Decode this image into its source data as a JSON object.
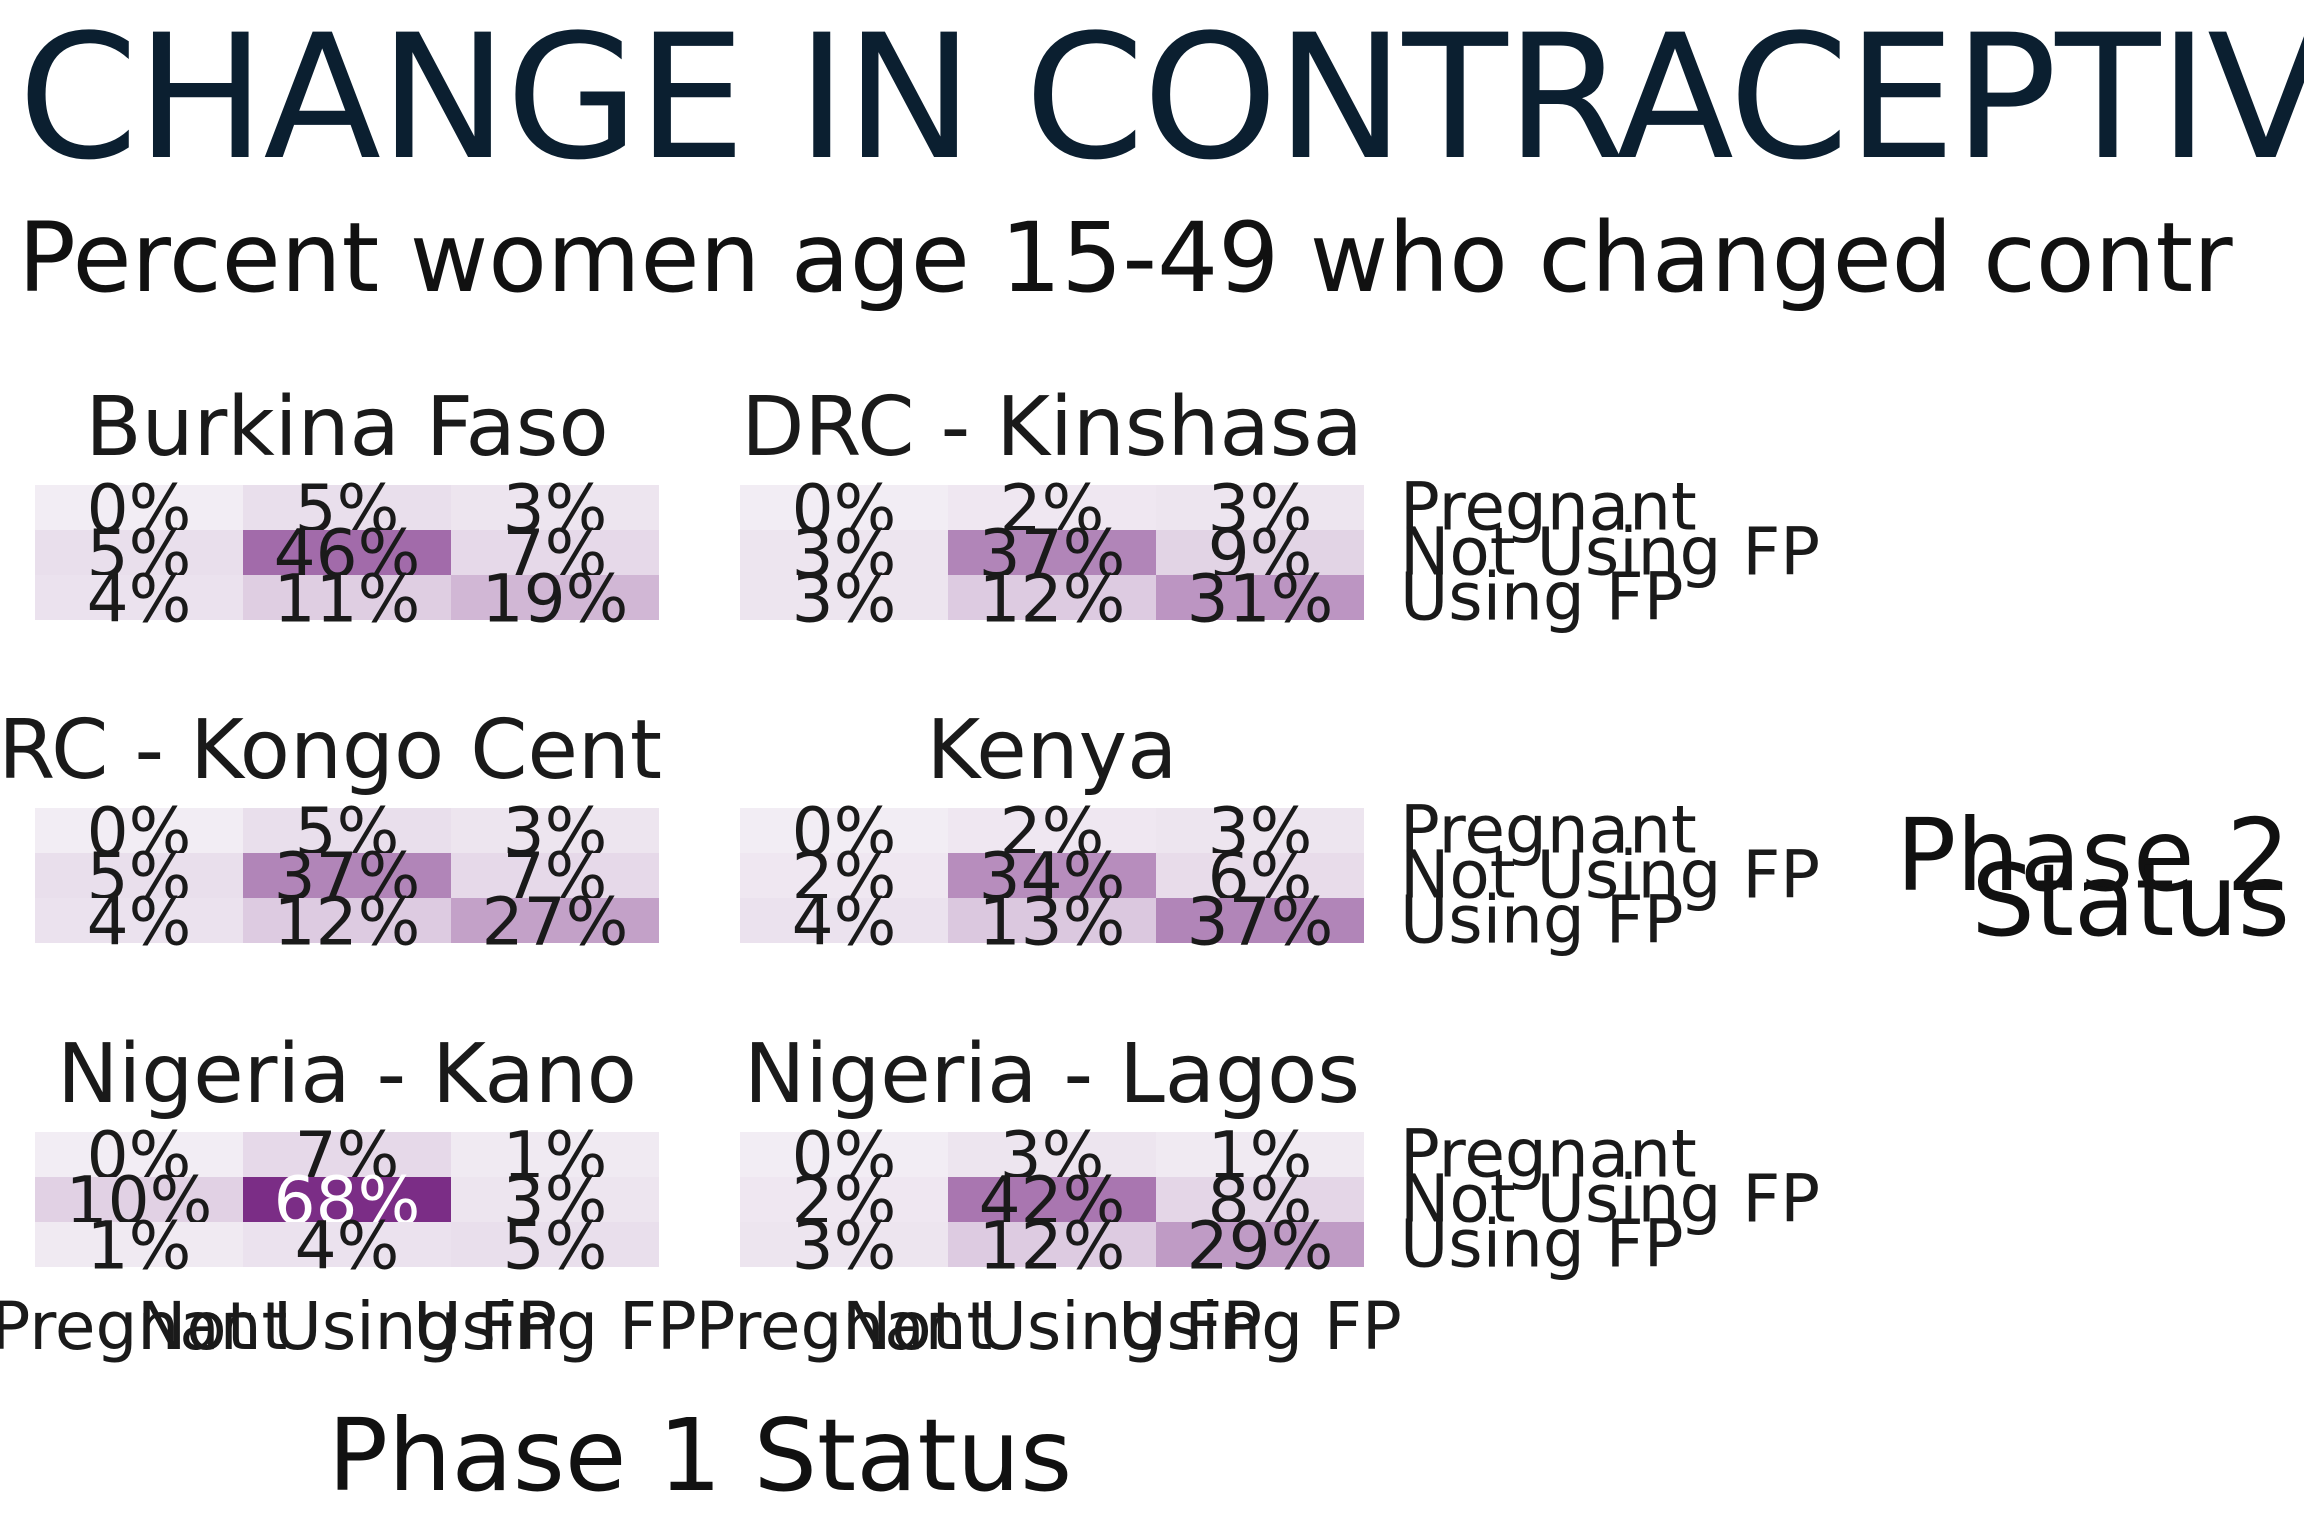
{
  "title": "CHANGE IN CONTRACEPTIV",
  "subtitle": "Percent women age 15-49 who changed contr",
  "chart_data": {
    "type": "heatmap",
    "xlabel": "Phase 1 Status",
    "ylabel": "Phase 2 Status",
    "categories": [
      "Pregnant",
      "Not Using FP",
      "Using FP"
    ],
    "x_tick_labels": [
      "Pregnant",
      "Not Using FP",
      "Using FP"
    ],
    "y_tick_labels": [
      "Pregnant",
      "Not Using FP",
      "Using FP"
    ],
    "value_format": "percent",
    "color_scale": [
      "#f2edf4",
      "#7b2d86"
    ],
    "panels": [
      {
        "name": "Burkina Faso",
        "values": [
          [
            0,
            5,
            3
          ],
          [
            5,
            46,
            7
          ],
          [
            4,
            11,
            19
          ]
        ],
        "labels": [
          [
            "0%",
            "5%",
            "3%"
          ],
          [
            "5%",
            "46%",
            "7%"
          ],
          [
            "4%",
            "11%",
            "19%"
          ]
        ]
      },
      {
        "name": "DRC - Kinshasa",
        "values": [
          [
            0,
            2,
            3
          ],
          [
            3,
            37,
            9
          ],
          [
            3,
            12,
            31
          ]
        ],
        "labels": [
          [
            "0%",
            "2%",
            "3%"
          ],
          [
            "3%",
            "37%",
            "9%"
          ],
          [
            "3%",
            "12%",
            "31%"
          ]
        ]
      },
      {
        "name": "RC - Kongo Centr",
        "values": [
          [
            0,
            5,
            3
          ],
          [
            5,
            37,
            7
          ],
          [
            4,
            12,
            27
          ]
        ],
        "labels": [
          [
            "0%",
            "5%",
            "3%"
          ],
          [
            "5%",
            "37%",
            "7%"
          ],
          [
            "4%",
            "12%",
            "27%"
          ]
        ]
      },
      {
        "name": "Kenya",
        "values": [
          [
            0,
            2,
            3
          ],
          [
            2,
            34,
            6
          ],
          [
            4,
            13,
            37
          ]
        ],
        "labels": [
          [
            "0%",
            "2%",
            "3%"
          ],
          [
            "2%",
            "34%",
            "6%"
          ],
          [
            "4%",
            "13%",
            "37%"
          ]
        ]
      },
      {
        "name": "Nigeria - Kano",
        "values": [
          [
            0,
            7,
            1
          ],
          [
            10,
            68,
            3
          ],
          [
            1,
            4,
            5
          ]
        ],
        "labels": [
          [
            "0%",
            "7%",
            "1%"
          ],
          [
            "10%",
            "68%",
            "3%"
          ],
          [
            "1%",
            "4%",
            "5%"
          ]
        ]
      },
      {
        "name": "Nigeria - Lagos",
        "values": [
          [
            0,
            3,
            1
          ],
          [
            2,
            42,
            8
          ],
          [
            3,
            12,
            29
          ]
        ],
        "labels": [
          [
            "0%",
            "3%",
            "1%"
          ],
          [
            "2%",
            "42%",
            "8%"
          ],
          [
            "3%",
            "12%",
            "29%"
          ]
        ]
      }
    ]
  }
}
